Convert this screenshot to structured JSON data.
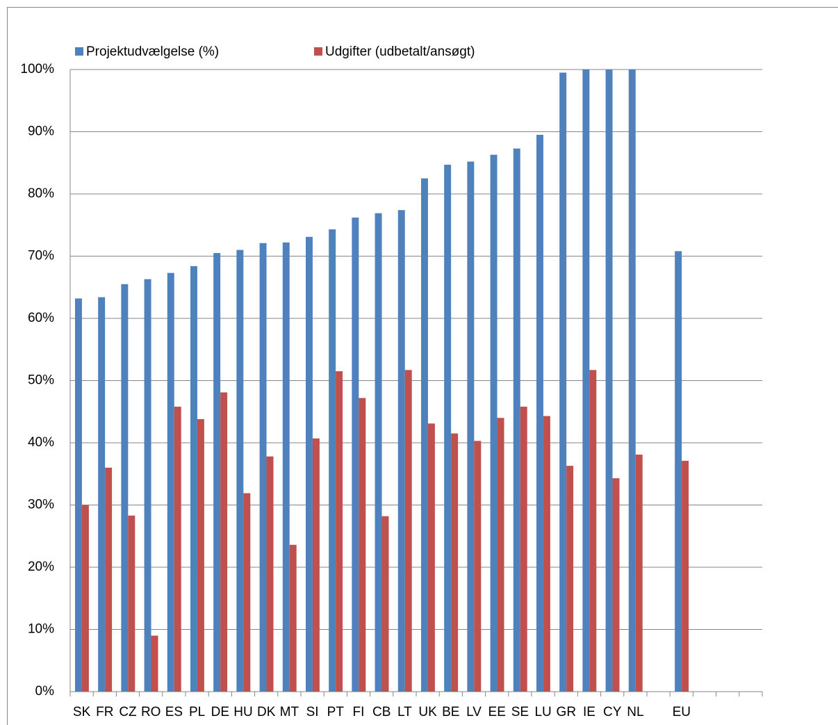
{
  "chart_data": {
    "type": "bar",
    "categories": [
      "SK",
      "FR",
      "CZ",
      "RO",
      "ES",
      "PL",
      "DE",
      "HU",
      "DK",
      "MT",
      "SI",
      "PT",
      "FI",
      "CB",
      "LT",
      "UK",
      "BE",
      "LV",
      "EE",
      "SE",
      "LU",
      "GR",
      "IE",
      "CY",
      "NL",
      null,
      "EU",
      null,
      null,
      null
    ],
    "series": [
      {
        "name": "Projektudvælgelse (%)",
        "color": "#4f81bd",
        "values": [
          63.2,
          63.4,
          65.5,
          66.3,
          67.3,
          68.4,
          70.5,
          71.0,
          72.1,
          72.2,
          73.1,
          74.3,
          76.2,
          76.9,
          77.4,
          82.5,
          84.7,
          85.2,
          86.3,
          87.3,
          89.5,
          99.5,
          100,
          100,
          100,
          null,
          70.8,
          null,
          null,
          null
        ]
      },
      {
        "name": "Udgifter (udbetalt/ansøgt)",
        "color": "#c0504d",
        "values": [
          30.0,
          36.0,
          28.3,
          9.0,
          45.8,
          43.8,
          48.1,
          31.9,
          37.8,
          23.6,
          40.7,
          51.5,
          47.2,
          28.2,
          51.7,
          43.1,
          41.5,
          40.3,
          44.0,
          45.8,
          44.3,
          36.3,
          51.7,
          34.3,
          38.1,
          null,
          37.1,
          null,
          null,
          null
        ]
      }
    ],
    "ylim": [
      0,
      100
    ],
    "yticks": [
      {
        "value": 0,
        "label": "0%"
      },
      {
        "value": 10,
        "label": "10%"
      },
      {
        "value": 20,
        "label": "20%"
      },
      {
        "value": 30,
        "label": "30%"
      },
      {
        "value": 40,
        "label": "40%"
      },
      {
        "value": 50,
        "label": "50%"
      },
      {
        "value": 60,
        "label": "60%"
      },
      {
        "value": 70,
        "label": "70%"
      },
      {
        "value": 80,
        "label": "80%"
      },
      {
        "value": 90,
        "label": "90%"
      },
      {
        "value": 100,
        "label": "100%"
      }
    ],
    "grid": true,
    "legend": "top"
  }
}
